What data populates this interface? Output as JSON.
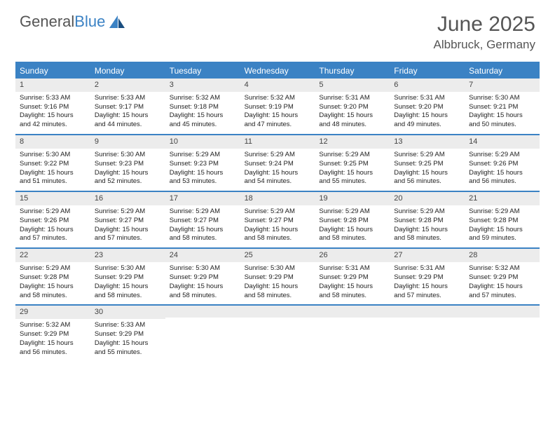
{
  "logo": {
    "word1": "General",
    "word2": "Blue"
  },
  "title": "June 2025",
  "location": "Albbruck, Germany",
  "colors": {
    "brand": "#3b82c4",
    "header_bg": "#3b82c4",
    "header_text": "#ffffff",
    "daynum_bg": "#ececec",
    "text": "#222222",
    "title_text": "#555555"
  },
  "day_names": [
    "Sunday",
    "Monday",
    "Tuesday",
    "Wednesday",
    "Thursday",
    "Friday",
    "Saturday"
  ],
  "weeks": [
    [
      {
        "num": "1",
        "sunrise": "Sunrise: 5:33 AM",
        "sunset": "Sunset: 9:16 PM",
        "daylight": "Daylight: 15 hours and 42 minutes."
      },
      {
        "num": "2",
        "sunrise": "Sunrise: 5:33 AM",
        "sunset": "Sunset: 9:17 PM",
        "daylight": "Daylight: 15 hours and 44 minutes."
      },
      {
        "num": "3",
        "sunrise": "Sunrise: 5:32 AM",
        "sunset": "Sunset: 9:18 PM",
        "daylight": "Daylight: 15 hours and 45 minutes."
      },
      {
        "num": "4",
        "sunrise": "Sunrise: 5:32 AM",
        "sunset": "Sunset: 9:19 PM",
        "daylight": "Daylight: 15 hours and 47 minutes."
      },
      {
        "num": "5",
        "sunrise": "Sunrise: 5:31 AM",
        "sunset": "Sunset: 9:20 PM",
        "daylight": "Daylight: 15 hours and 48 minutes."
      },
      {
        "num": "6",
        "sunrise": "Sunrise: 5:31 AM",
        "sunset": "Sunset: 9:20 PM",
        "daylight": "Daylight: 15 hours and 49 minutes."
      },
      {
        "num": "7",
        "sunrise": "Sunrise: 5:30 AM",
        "sunset": "Sunset: 9:21 PM",
        "daylight": "Daylight: 15 hours and 50 minutes."
      }
    ],
    [
      {
        "num": "8",
        "sunrise": "Sunrise: 5:30 AM",
        "sunset": "Sunset: 9:22 PM",
        "daylight": "Daylight: 15 hours and 51 minutes."
      },
      {
        "num": "9",
        "sunrise": "Sunrise: 5:30 AM",
        "sunset": "Sunset: 9:23 PM",
        "daylight": "Daylight: 15 hours and 52 minutes."
      },
      {
        "num": "10",
        "sunrise": "Sunrise: 5:29 AM",
        "sunset": "Sunset: 9:23 PM",
        "daylight": "Daylight: 15 hours and 53 minutes."
      },
      {
        "num": "11",
        "sunrise": "Sunrise: 5:29 AM",
        "sunset": "Sunset: 9:24 PM",
        "daylight": "Daylight: 15 hours and 54 minutes."
      },
      {
        "num": "12",
        "sunrise": "Sunrise: 5:29 AM",
        "sunset": "Sunset: 9:25 PM",
        "daylight": "Daylight: 15 hours and 55 minutes."
      },
      {
        "num": "13",
        "sunrise": "Sunrise: 5:29 AM",
        "sunset": "Sunset: 9:25 PM",
        "daylight": "Daylight: 15 hours and 56 minutes."
      },
      {
        "num": "14",
        "sunrise": "Sunrise: 5:29 AM",
        "sunset": "Sunset: 9:26 PM",
        "daylight": "Daylight: 15 hours and 56 minutes."
      }
    ],
    [
      {
        "num": "15",
        "sunrise": "Sunrise: 5:29 AM",
        "sunset": "Sunset: 9:26 PM",
        "daylight": "Daylight: 15 hours and 57 minutes."
      },
      {
        "num": "16",
        "sunrise": "Sunrise: 5:29 AM",
        "sunset": "Sunset: 9:27 PM",
        "daylight": "Daylight: 15 hours and 57 minutes."
      },
      {
        "num": "17",
        "sunrise": "Sunrise: 5:29 AM",
        "sunset": "Sunset: 9:27 PM",
        "daylight": "Daylight: 15 hours and 58 minutes."
      },
      {
        "num": "18",
        "sunrise": "Sunrise: 5:29 AM",
        "sunset": "Sunset: 9:27 PM",
        "daylight": "Daylight: 15 hours and 58 minutes."
      },
      {
        "num": "19",
        "sunrise": "Sunrise: 5:29 AM",
        "sunset": "Sunset: 9:28 PM",
        "daylight": "Daylight: 15 hours and 58 minutes."
      },
      {
        "num": "20",
        "sunrise": "Sunrise: 5:29 AM",
        "sunset": "Sunset: 9:28 PM",
        "daylight": "Daylight: 15 hours and 58 minutes."
      },
      {
        "num": "21",
        "sunrise": "Sunrise: 5:29 AM",
        "sunset": "Sunset: 9:28 PM",
        "daylight": "Daylight: 15 hours and 59 minutes."
      }
    ],
    [
      {
        "num": "22",
        "sunrise": "Sunrise: 5:29 AM",
        "sunset": "Sunset: 9:28 PM",
        "daylight": "Daylight: 15 hours and 58 minutes."
      },
      {
        "num": "23",
        "sunrise": "Sunrise: 5:30 AM",
        "sunset": "Sunset: 9:29 PM",
        "daylight": "Daylight: 15 hours and 58 minutes."
      },
      {
        "num": "24",
        "sunrise": "Sunrise: 5:30 AM",
        "sunset": "Sunset: 9:29 PM",
        "daylight": "Daylight: 15 hours and 58 minutes."
      },
      {
        "num": "25",
        "sunrise": "Sunrise: 5:30 AM",
        "sunset": "Sunset: 9:29 PM",
        "daylight": "Daylight: 15 hours and 58 minutes."
      },
      {
        "num": "26",
        "sunrise": "Sunrise: 5:31 AM",
        "sunset": "Sunset: 9:29 PM",
        "daylight": "Daylight: 15 hours and 58 minutes."
      },
      {
        "num": "27",
        "sunrise": "Sunrise: 5:31 AM",
        "sunset": "Sunset: 9:29 PM",
        "daylight": "Daylight: 15 hours and 57 minutes."
      },
      {
        "num": "28",
        "sunrise": "Sunrise: 5:32 AM",
        "sunset": "Sunset: 9:29 PM",
        "daylight": "Daylight: 15 hours and 57 minutes."
      }
    ],
    [
      {
        "num": "29",
        "sunrise": "Sunrise: 5:32 AM",
        "sunset": "Sunset: 9:29 PM",
        "daylight": "Daylight: 15 hours and 56 minutes."
      },
      {
        "num": "30",
        "sunrise": "Sunrise: 5:33 AM",
        "sunset": "Sunset: 9:29 PM",
        "daylight": "Daylight: 15 hours and 55 minutes."
      },
      {
        "num": "",
        "sunrise": "",
        "sunset": "",
        "daylight": ""
      },
      {
        "num": "",
        "sunrise": "",
        "sunset": "",
        "daylight": ""
      },
      {
        "num": "",
        "sunrise": "",
        "sunset": "",
        "daylight": ""
      },
      {
        "num": "",
        "sunrise": "",
        "sunset": "",
        "daylight": ""
      },
      {
        "num": "",
        "sunrise": "",
        "sunset": "",
        "daylight": ""
      }
    ]
  ]
}
